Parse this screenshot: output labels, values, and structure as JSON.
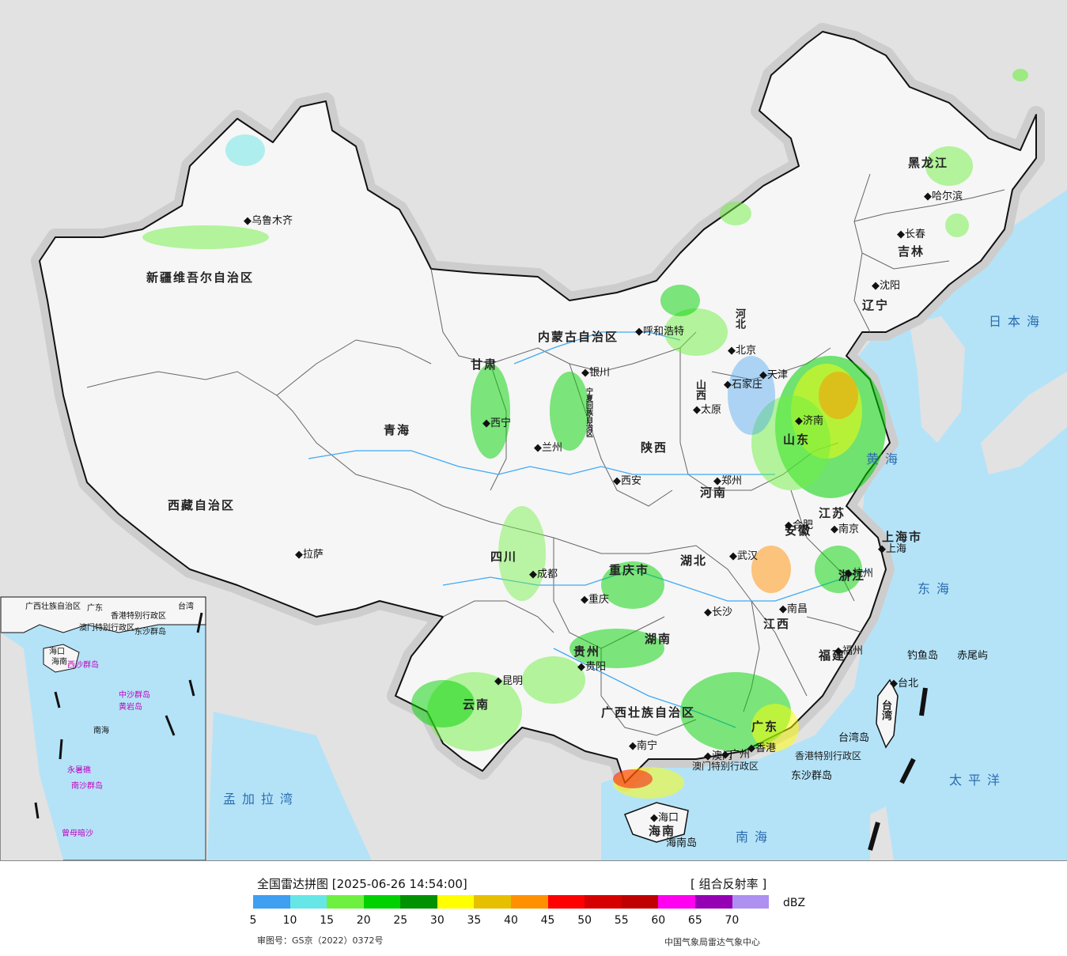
{
  "map": {
    "provinces": [
      {
        "name": "新疆维吾尔自治区"
      },
      {
        "name": "西藏自治区"
      },
      {
        "name": "青海"
      },
      {
        "name": "内蒙古自治区"
      },
      {
        "name": "黑龙江"
      },
      {
        "name": "吉林"
      },
      {
        "name": "辽宁"
      },
      {
        "name": "河北"
      },
      {
        "name": "山西"
      },
      {
        "name": "陕西"
      },
      {
        "name": "甘肃"
      },
      {
        "name": "宁夏回族自治区"
      },
      {
        "name": "四川"
      },
      {
        "name": "重庆市"
      },
      {
        "name": "河南"
      },
      {
        "name": "山东"
      },
      {
        "name": "江苏"
      },
      {
        "name": "安徽"
      },
      {
        "name": "湖北"
      },
      {
        "name": "湖南"
      },
      {
        "name": "江西"
      },
      {
        "name": "浙江"
      },
      {
        "name": "福建"
      },
      {
        "name": "贵州"
      },
      {
        "name": "云南"
      },
      {
        "name": "广西壮族自治区"
      },
      {
        "name": "广东"
      },
      {
        "name": "海南"
      },
      {
        "name": "台湾"
      },
      {
        "name": "上海市"
      },
      {
        "name": "香港特别行政区"
      },
      {
        "name": "澳门特别行政区"
      }
    ],
    "cities": [
      "乌鲁木齐",
      "拉萨",
      "西宁",
      "兰州",
      "银川",
      "呼和浩特",
      "北京",
      "天津",
      "石家庄",
      "太原",
      "西安",
      "郑州",
      "济南",
      "合肥",
      "南京",
      "上海",
      "杭州",
      "武汉",
      "长沙",
      "南昌",
      "福州",
      "台北",
      "成都",
      "重庆",
      "贵阳",
      "昆明",
      "南宁",
      "广州",
      "香港",
      "澳门",
      "海口",
      "哈尔滨",
      "长春",
      "沈阳"
    ],
    "seas": [
      "日本海",
      "黄海",
      "东海",
      "南海",
      "太平洋",
      "孟加拉湾"
    ],
    "islands": [
      "钓鱼岛",
      "赤尾屿",
      "台湾岛",
      "东沙群岛",
      "海南岛"
    ],
    "inset": {
      "labels": [
        "广西壮族自治区",
        "广东",
        "香港特别行政区",
        "澳门特别行政区",
        "台湾",
        "东沙群岛",
        "海口",
        "海南",
        "西沙群岛",
        "中沙群岛",
        "黄岩岛",
        "南海",
        "永暑礁",
        "南沙群岛",
        "曾母暗沙"
      ]
    }
  },
  "legend": {
    "title": "全国雷达拼图 [2025-06-26 14:54:00]",
    "product": "[ 组合反射率 ]",
    "unit": "dBZ",
    "colors": [
      "#3f9ff0",
      "#66e6e6",
      "#6ef041",
      "#00d200",
      "#009200",
      "#ffff00",
      "#e6c000",
      "#ff9000",
      "#ff0000",
      "#d60000",
      "#c00000",
      "#ff00f0",
      "#9600b4",
      "#ad90f0"
    ],
    "ticks": [
      "5",
      "10",
      "15",
      "20",
      "25",
      "30",
      "35",
      "40",
      "45",
      "50",
      "55",
      "60",
      "65",
      "70"
    ],
    "approval": "审图号：GS京（2022）0372号",
    "org": "中国气象局雷达气象中心"
  }
}
